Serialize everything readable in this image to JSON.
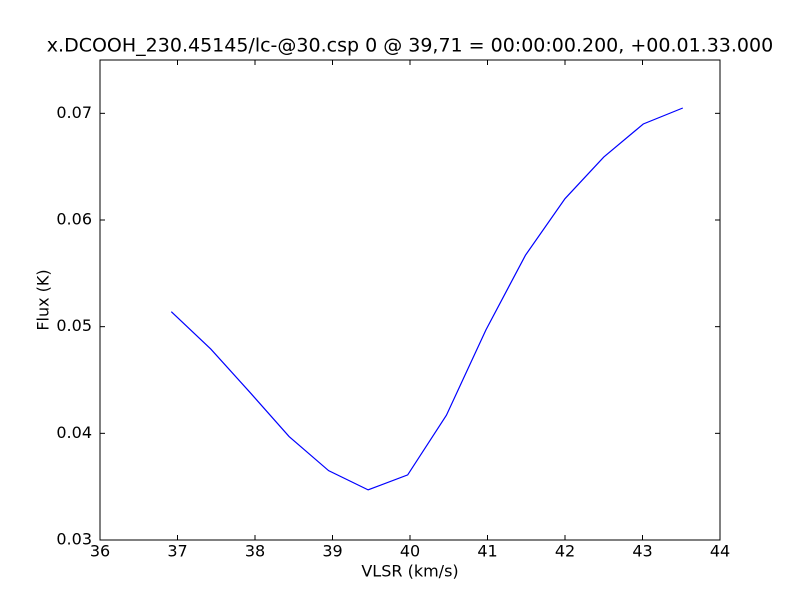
{
  "chart_data": {
    "type": "line",
    "title": "x.DCOOH_230.45145/lc-@30.csp 0 @ 39,71 = 00:00:00.200, +00.01.33.000",
    "x_label": "VLSR (km/s)",
    "y_label": "Flux (K)",
    "x": [
      36.92,
      37.43,
      37.94,
      38.44,
      38.95,
      39.46,
      39.97,
      40.47,
      40.98,
      41.49,
      42.0,
      42.5,
      43.01,
      43.52
    ],
    "series": [
      {
        "color": "#0000ff",
        "values": [
          0.0514,
          0.0479,
          0.0438,
          0.0397,
          0.0365,
          0.0347,
          0.0361,
          0.0417,
          0.0497,
          0.0567,
          0.062,
          0.0659,
          0.069,
          0.0705
        ]
      }
    ],
    "xlim": [
      36,
      44
    ],
    "xticks": [
      36,
      37,
      38,
      39,
      40,
      41,
      42,
      43,
      44
    ],
    "ylim": [
      0.03,
      0.075
    ],
    "yticks": [
      0.03,
      0.04,
      0.05,
      0.06,
      0.07
    ]
  }
}
